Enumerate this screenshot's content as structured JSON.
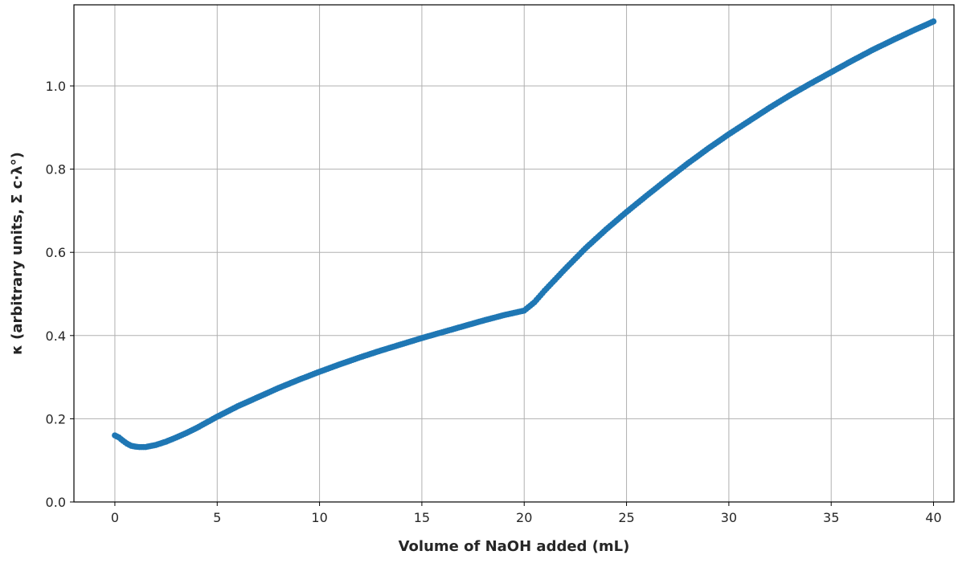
{
  "chart_data": {
    "type": "scatter",
    "title": "",
    "xlabel": "Volume of NaOH added (mL)",
    "ylabel": "κ (arbitrary units, Σ c·λ°)",
    "xlim": [
      -2,
      41
    ],
    "ylim": [
      0,
      1.195
    ],
    "x_ticks": [
      0,
      5,
      10,
      15,
      20,
      25,
      30,
      35,
      40
    ],
    "x_tick_labels": [
      "0",
      "5",
      "10",
      "15",
      "20",
      "25",
      "30",
      "35",
      "40"
    ],
    "y_ticks": [
      0.0,
      0.2,
      0.4,
      0.6,
      0.8,
      1.0
    ],
    "y_tick_labels": [
      "0.0",
      "0.2",
      "0.4",
      "0.6",
      "0.8",
      "1.0"
    ],
    "grid": true,
    "marker_color": "#1f77b4",
    "series": [
      {
        "x": [
          0,
          0.2,
          0.4,
          0.6,
          0.8,
          1,
          1.2,
          1.5,
          2,
          2.5,
          3,
          3.5,
          4,
          5,
          6,
          7,
          8,
          9,
          10,
          11,
          12,
          13,
          14,
          15,
          16,
          17,
          18,
          19,
          20,
          20.5,
          21,
          22,
          23,
          24,
          25,
          26,
          27,
          28,
          29,
          30,
          31,
          32,
          33,
          34,
          35,
          36,
          37,
          38,
          39,
          40
        ],
        "y": [
          0.16,
          0.155,
          0.147,
          0.14,
          0.135,
          0.133,
          0.132,
          0.132,
          0.137,
          0.145,
          0.155,
          0.166,
          0.178,
          0.205,
          0.23,
          0.252,
          0.274,
          0.294,
          0.313,
          0.331,
          0.348,
          0.364,
          0.379,
          0.394,
          0.408,
          0.422,
          0.436,
          0.449,
          0.46,
          0.48,
          0.508,
          0.56,
          0.61,
          0.655,
          0.697,
          0.737,
          0.776,
          0.814,
          0.85,
          0.884,
          0.916,
          0.948,
          0.978,
          1.006,
          1.033,
          1.06,
          1.086,
          1.11,
          1.133,
          1.155
        ]
      }
    ]
  }
}
